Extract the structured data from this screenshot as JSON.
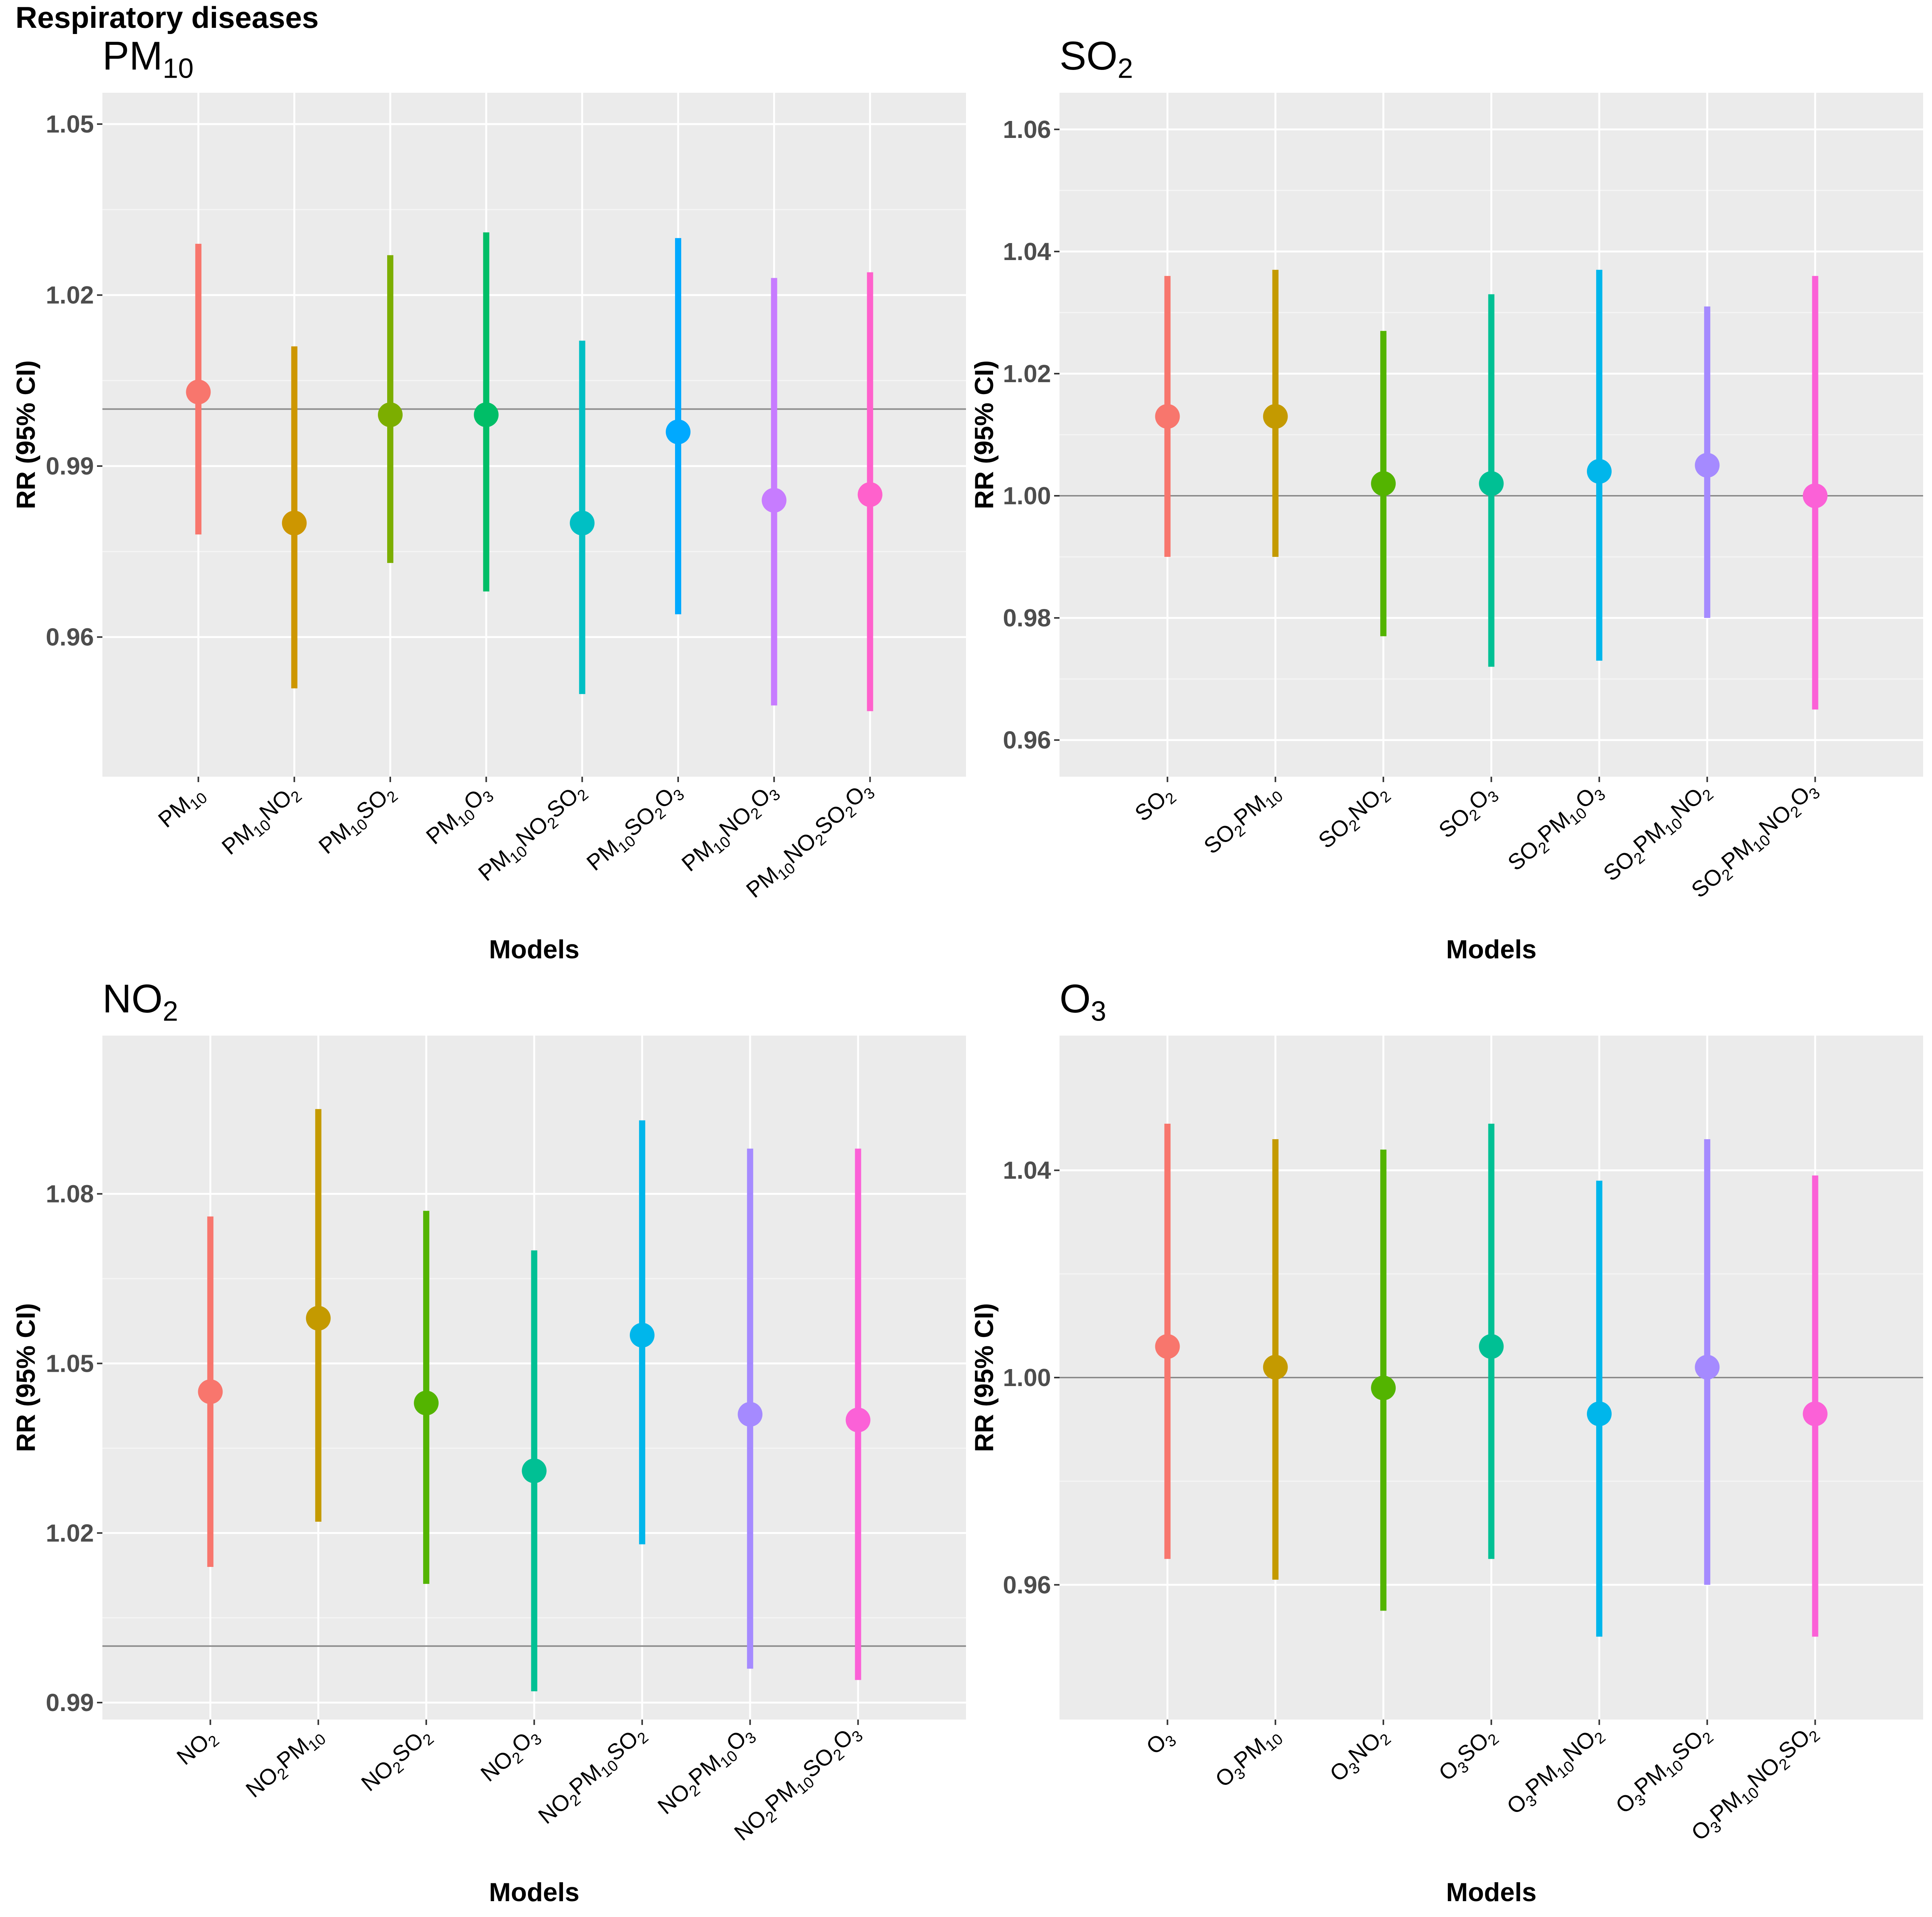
{
  "page_title": "Respiratory diseases",
  "colors": [
    "#F8766D",
    "#C49A00",
    "#53B400",
    "#00C094",
    "#00B6EB",
    "#A58AFF",
    "#FB61D7"
  ],
  "colors_8": [
    "#F8766D",
    "#CD9600",
    "#7CAE00",
    "#00BE67",
    "#00BFC4",
    "#00A9FF",
    "#C77CFF",
    "#FF61CC"
  ],
  "chart_data": [
    {
      "type": "errorbar",
      "id": "pm10",
      "title": "PM10",
      "xlabel": "Models",
      "ylabel": "RR (95% CI)",
      "ylim": [
        0.9355,
        1.0555
      ],
      "yticks": [
        0.96,
        0.99,
        1.02,
        1.05
      ],
      "ytick_labels": [
        "0.96",
        "0.99",
        "1.02",
        "1.05"
      ],
      "reference_line": 1.0,
      "categories": [
        "PM10",
        "PM10NO2",
        "PM10SO2",
        "PM10O3",
        "PM10NO2SO2",
        "PM10SO2O3",
        "PM10NO2O3",
        "PM10NO2SO2O3"
      ],
      "estimates": [
        1.003,
        0.98,
        0.999,
        0.999,
        0.98,
        0.996,
        0.984,
        0.985
      ],
      "lower": [
        0.978,
        0.951,
        0.973,
        0.968,
        0.95,
        0.964,
        0.948,
        0.947
      ],
      "upper": [
        1.029,
        1.011,
        1.027,
        1.031,
        1.012,
        1.03,
        1.023,
        1.024
      ]
    },
    {
      "type": "errorbar",
      "id": "so2",
      "title": "SO2",
      "xlabel": "Models",
      "ylabel": "RR (95% CI)",
      "ylim": [
        0.954,
        1.066
      ],
      "yticks": [
        0.96,
        0.98,
        1.0,
        1.02,
        1.04,
        1.06
      ],
      "ytick_labels": [
        "0.96",
        "0.98",
        "1.00",
        "1.02",
        "1.04",
        "1.06"
      ],
      "reference_line": 1.0,
      "categories": [
        "SO2",
        "SO2PM10",
        "SO2NO2",
        "SO2O3",
        "SO2PM10O3",
        "SO2PM10NO2",
        "SO2PM10NO2O3"
      ],
      "estimates": [
        1.013,
        1.013,
        1.002,
        1.002,
        1.004,
        1.005,
        1.0
      ],
      "lower": [
        0.99,
        0.99,
        0.977,
        0.972,
        0.973,
        0.98,
        0.965
      ],
      "upper": [
        1.036,
        1.037,
        1.027,
        1.033,
        1.037,
        1.031,
        1.036
      ]
    },
    {
      "type": "errorbar",
      "id": "no2",
      "title": "NO2",
      "xlabel": "Models",
      "ylabel": "RR (95% CI)",
      "ylim": [
        0.987,
        1.108
      ],
      "yticks": [
        0.99,
        1.02,
        1.05,
        1.08
      ],
      "ytick_labels": [
        "0.99",
        "1.02",
        "1.05",
        "1.08"
      ],
      "reference_line": 1.0,
      "categories": [
        "NO2",
        "NO2PM10",
        "NO2SO2",
        "NO2O3",
        "NO2PM10SO2",
        "NO2PM10O3",
        "NO2PM10SO2O3"
      ],
      "estimates": [
        1.045,
        1.058,
        1.043,
        1.031,
        1.055,
        1.041,
        1.04
      ],
      "lower": [
        1.014,
        1.022,
        1.011,
        0.992,
        1.018,
        0.996,
        0.994
      ],
      "upper": [
        1.076,
        1.095,
        1.077,
        1.07,
        1.093,
        1.088,
        1.088
      ]
    },
    {
      "type": "errorbar",
      "id": "o3",
      "title": "O3",
      "xlabel": "Models",
      "ylabel": "RR (95% CI)",
      "ylim": [
        0.934,
        1.066
      ],
      "yticks": [
        0.96,
        1.0,
        1.04
      ],
      "ytick_labels": [
        "0.96",
        "1.00",
        "1.04"
      ],
      "reference_line": 1.0,
      "categories": [
        "O3",
        "O3PM10",
        "O3NO2",
        "O3SO2",
        "O3PM10NO2",
        "O3PM10SO2",
        "O3PM10NO2SO2"
      ],
      "estimates": [
        1.006,
        1.002,
        0.998,
        1.006,
        0.993,
        1.002,
        0.993
      ],
      "lower": [
        0.965,
        0.961,
        0.955,
        0.965,
        0.95,
        0.96,
        0.95
      ],
      "upper": [
        1.049,
        1.046,
        1.044,
        1.049,
        1.038,
        1.046,
        1.039
      ]
    }
  ]
}
